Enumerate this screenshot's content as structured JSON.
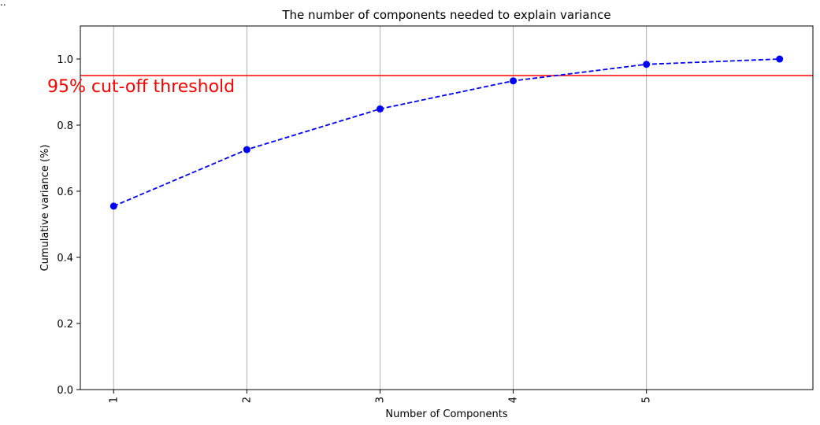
{
  "corner_text": "..",
  "chart_data": {
    "type": "line",
    "title": "The number of components needed to explain variance",
    "xlabel": "Number of Components",
    "ylabel": "Cumulative variance (%)",
    "x": [
      1,
      2,
      3,
      4,
      5,
      6
    ],
    "xticks": [
      1,
      2,
      3,
      4,
      5
    ],
    "xtick_labels": [
      "1",
      "2",
      "3",
      "4",
      "5"
    ],
    "xlim": [
      0.75,
      6.25
    ],
    "yticks": [
      0.0,
      0.2,
      0.4,
      0.6,
      0.8,
      1.0
    ],
    "ytick_labels": [
      "0.0",
      "0.2",
      "0.4",
      "0.6",
      "0.8",
      "1.0"
    ],
    "ylim": [
      0.0,
      1.1
    ],
    "grid": "vertical",
    "series": [
      {
        "values": [
          0.555,
          0.726,
          0.849,
          0.934,
          0.984,
          1.0
        ],
        "color": "#0000ff",
        "line_style": "dashed",
        "marker": "circle"
      }
    ],
    "threshold": {
      "value": 0.95,
      "color": "#ff0000",
      "label": "95% cut-off threshold",
      "label_color": "#ff0000"
    }
  }
}
